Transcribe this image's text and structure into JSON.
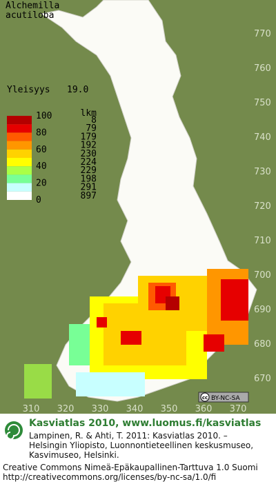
{
  "species": {
    "line1": "Alchemilla",
    "line2": "acutiloba"
  },
  "frequency": {
    "label": "Yleisyys",
    "value": "19.0"
  },
  "legend": {
    "percent_labels": [
      "100",
      "80",
      "60",
      "40",
      "20",
      "0"
    ],
    "count_header": "lkm",
    "classes": [
      {
        "color": "#b40000",
        "count": 8
      },
      {
        "color": "#e60000",
        "count": 79
      },
      {
        "color": "#ff5a00",
        "count": 179
      },
      {
        "color": "#ff9600",
        "count": 192
      },
      {
        "color": "#ffd200",
        "count": 230
      },
      {
        "color": "#ffff00",
        "count": 224
      },
      {
        "color": "#aaff46",
        "count": 229
      },
      {
        "color": "#78ff96",
        "count": 198
      },
      {
        "color": "#c8ffff",
        "count": 291
      },
      {
        "color": "#ffffff",
        "count": 897
      }
    ]
  },
  "grid": {
    "northing": [
      770,
      760,
      750,
      740,
      730,
      720,
      710,
      700,
      690,
      680,
      670
    ],
    "easting": [
      310,
      320,
      330,
      340,
      350,
      360,
      370
    ]
  },
  "license_badge": "BY-NC-SA",
  "footer": {
    "title": "Kasviatlas 2010, www.luomus.fi/kasviatlas",
    "citation": [
      "Lampinen, R. & Ahti, T. 2011: Kasviatlas 2010. –",
      "Helsingin Yliopisto, Luonnontieteellinen keskusmuseo,",
      "Kasvimuseo, Helsinki."
    ],
    "license": [
      "Creative Commons Nimeä-Epäkaupallinen-Tarttuva 1.0 Suomi",
      "http://creativecommons.org/licenses/by-nc-sa/1.0/fi"
    ]
  }
}
